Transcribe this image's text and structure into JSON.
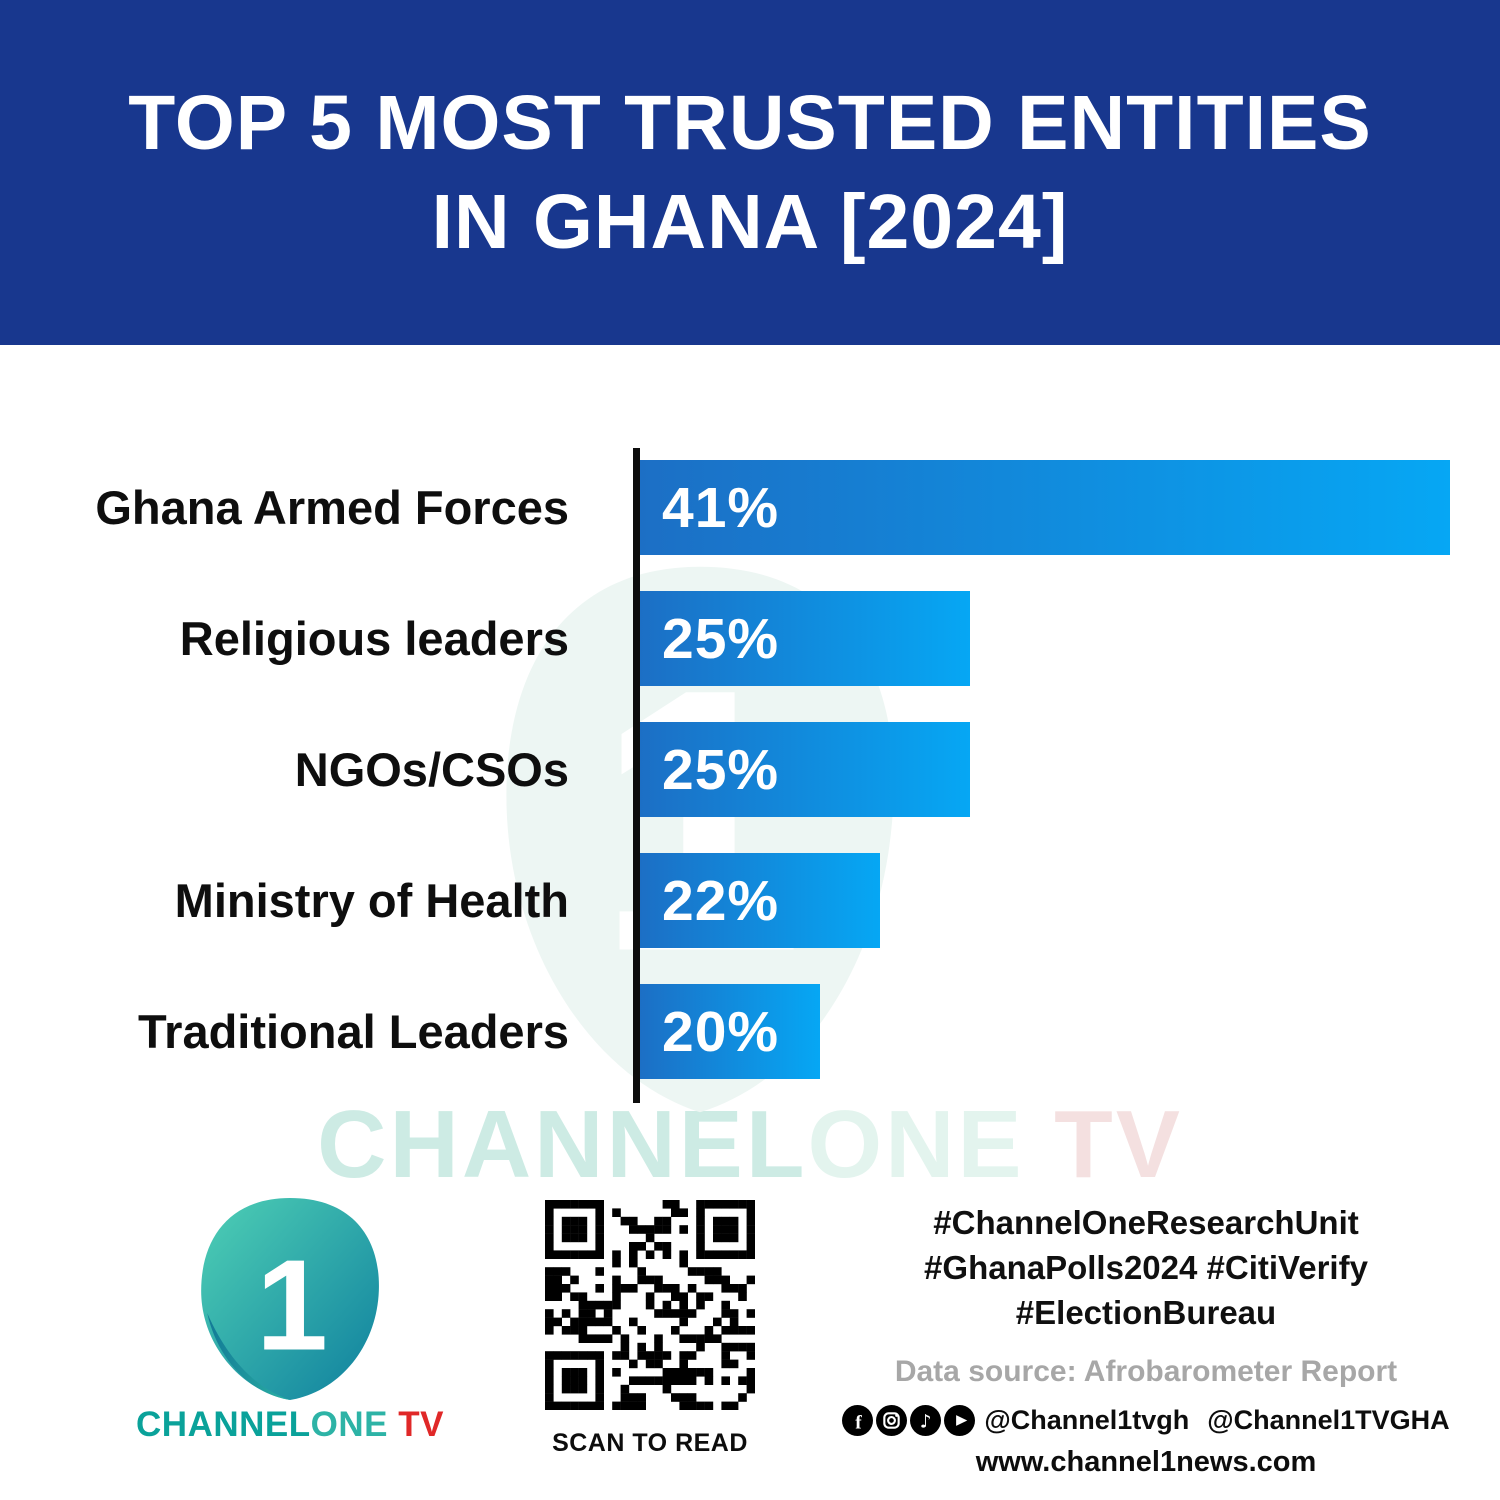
{
  "header": {
    "title_line1": "TOP 5 MOST TRUSTED ENTITIES",
    "title_line2": "IN GHANA [2024]"
  },
  "chart_data": {
    "type": "bar",
    "orientation": "horizontal",
    "title": "TOP 5 MOST TRUSTED ENTITIES IN GHANA [2024]",
    "categories": [
      "Ghana Armed Forces",
      "Religious leaders",
      "NGOs/CSOs",
      "Ministry of Health",
      "Traditional Leaders"
    ],
    "values": [
      41,
      25,
      25,
      22,
      20
    ],
    "value_labels": [
      "41%",
      "25%",
      "25%",
      "22%",
      "20%"
    ],
    "xlabel": "",
    "ylabel": "",
    "xlim": [
      0,
      41
    ],
    "grid": false,
    "legend": false,
    "bar_gradient": [
      "#1c6fc5",
      "#06a7f4"
    ],
    "axis_color": "#0d0d0d"
  },
  "watermark": {
    "part1": "CHANNEL",
    "part2": "ONE",
    "part3": " TV"
  },
  "footer": {
    "logo": {
      "numeral": "1",
      "wordmark_channel": "CHANNEL",
      "wordmark_one": "ONE",
      "wordmark_tv": " TV"
    },
    "qr_caption": "SCAN TO READ",
    "hashtag_lines": [
      "#ChannelOneResearchUnit",
      "#GhanaPolls2024 #CitiVerify",
      "#ElectionBureau"
    ],
    "data_source": "Data source: Afrobarometer Report",
    "socials": {
      "handle_primary": "@Channel1tvgh",
      "handle_x": "@Channel1TVGHA"
    },
    "website": "www.channel1news.com"
  },
  "colors": {
    "header_bg": "#18378E",
    "text_dark": "#0e0e0e",
    "source_gray": "#a7a7a7"
  }
}
